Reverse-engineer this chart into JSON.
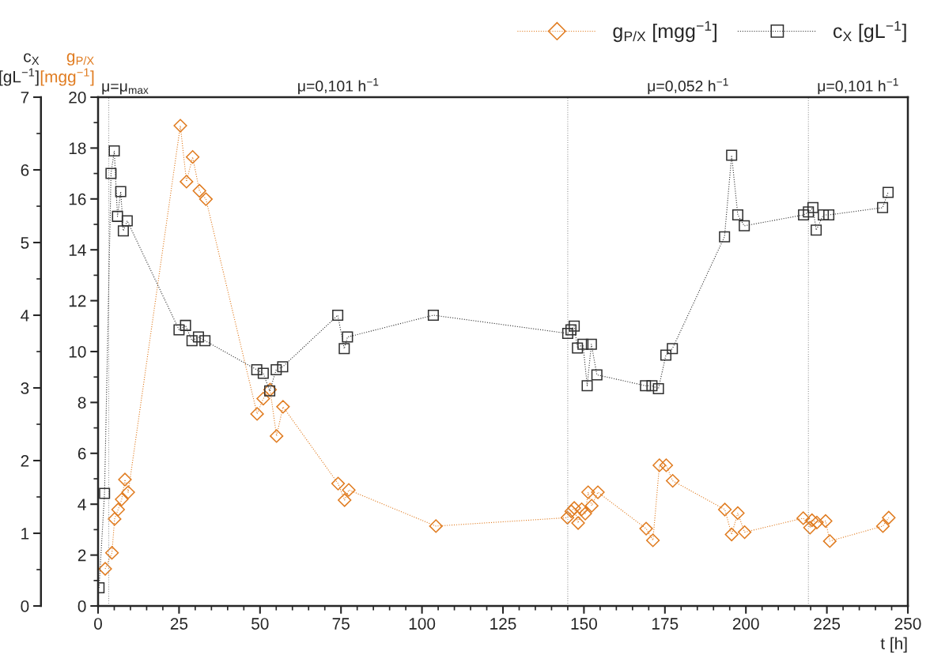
{
  "chart_data": {
    "type": "line",
    "xlabel": "t [h]",
    "ylabel": "g$_{P/X}$\n[mgg$^{−1}$]",
    "y2label": "c$_{X}$\n[gL$^{−1}$]",
    "xlim": [
      0,
      250
    ],
    "xticks": [
      0,
      25,
      50,
      75,
      100,
      125,
      150,
      175,
      200,
      225,
      250
    ],
    "ylim": [
      0,
      20
    ],
    "yticks": [
      0,
      2,
      4,
      6,
      8,
      10,
      12,
      14,
      16,
      18,
      20
    ],
    "y2lim": [
      0,
      7
    ],
    "y2ticks": [
      0,
      1,
      2,
      3,
      4,
      5,
      6,
      7
    ],
    "line_style": "dotted",
    "legend": "top right",
    "grid": false,
    "series": [
      {
        "name": "g$_{P/X}$ [mgg$^{−1}$]",
        "color": "#e07b1f",
        "marker": "diamond",
        "x": [
          2.2,
          4.3,
          5.1,
          6.2,
          7.3,
          8.3,
          9.3,
          25.4,
          27.3,
          29.2,
          31.3,
          33.3,
          49.1,
          51.0,
          53.1,
          55.1,
          57.1,
          74.1,
          76.1,
          77.4,
          104.3,
          144.9,
          146.1,
          147.0,
          148.2,
          149.3,
          150.4,
          151.3,
          152.4,
          154.3,
          169.2,
          171.3,
          173.3,
          175.4,
          177.4,
          193.5,
          195.6,
          197.5,
          199.6,
          217.7,
          219.8,
          220.4,
          221.9,
          224.6,
          225.9,
          242.3,
          244.1
        ],
        "values": [
          1.46,
          2.09,
          3.42,
          3.79,
          4.19,
          4.97,
          4.47,
          18.88,
          16.68,
          17.65,
          16.32,
          15.99,
          7.55,
          8.15,
          8.5,
          6.68,
          7.83,
          4.81,
          4.16,
          4.56,
          3.14,
          3.47,
          3.72,
          3.85,
          3.26,
          3.8,
          3.63,
          4.47,
          3.94,
          4.47,
          3.04,
          2.58,
          5.53,
          5.53,
          4.92,
          3.79,
          2.81,
          3.65,
          2.9,
          3.45,
          3.08,
          3.37,
          3.28,
          3.34,
          2.55,
          3.14,
          3.47
        ]
      },
      {
        "name": "c$_{X}$ [gL$^{−1}$]",
        "color": "#303030",
        "marker": "square",
        "axis": "y2",
        "x": [
          0.3,
          2,
          4,
          5,
          6,
          7,
          7.8,
          9,
          25,
          27,
          29,
          31,
          33,
          49,
          51,
          53,
          55,
          57,
          74,
          76,
          77,
          103.5,
          145,
          146,
          147,
          148,
          149.7,
          151,
          152.3,
          154,
          169,
          171,
          173,
          175.3,
          177.3,
          193.4,
          195.6,
          197.5,
          199.5,
          217.8,
          219.3,
          220.7,
          221.7,
          223.9,
          225.6,
          242.2,
          243.9
        ],
        "values": [
          0.25,
          1.55,
          5.95,
          6.26,
          5.36,
          5.7,
          5.16,
          5.3,
          3.8,
          3.86,
          3.65,
          3.7,
          3.65,
          3.25,
          3.2,
          2.96,
          3.25,
          3.29,
          4.0,
          3.54,
          3.7,
          4.0,
          3.75,
          3.8,
          3.85,
          3.55,
          3.6,
          3.03,
          3.6,
          3.18,
          3.03,
          3.03,
          2.99,
          3.45,
          3.54,
          5.08,
          6.2,
          5.38,
          5.23,
          5.38,
          5.42,
          5.48,
          5.17,
          5.38,
          5.38,
          5.48,
          5.69
        ]
      }
    ],
    "ref_lines": [
      {
        "axis": "x",
        "value": 3.3,
        "color": "#999999",
        "line_style": "dotted"
      },
      {
        "axis": "x",
        "value": 145,
        "color": "#999999",
        "line_style": "dotted"
      },
      {
        "axis": "x",
        "value": 219.3,
        "color": "#999999",
        "line_style": "dotted"
      }
    ],
    "annotations": [
      "μ=μ$_{max}$",
      "μ=0,101 h$^{−1}$",
      "μ=0,052 h$^{−1}$",
      "μ=0,101 h$^{−1}$"
    ]
  }
}
